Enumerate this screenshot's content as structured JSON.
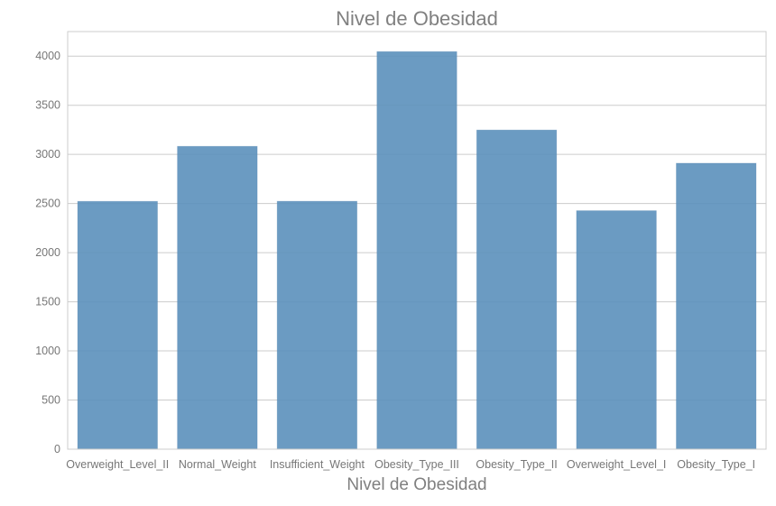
{
  "chart_data": {
    "type": "bar",
    "title": "Nivel de Obesidad",
    "xlabel": "Nivel de Obesidad",
    "ylabel": "",
    "categories": [
      "Overweight_Level_II",
      "Normal_Weight",
      "Insufficient_Weight",
      "Obesity_Type_III",
      "Obesity_Type_II",
      "Overweight_Level_I",
      "Obesity_Type_I"
    ],
    "values": [
      2522,
      3082,
      2523,
      4046,
      3248,
      2427,
      2910
    ],
    "ylim": [
      0,
      4250
    ],
    "yticks": [
      0,
      500,
      1000,
      1500,
      2000,
      2500,
      3000,
      3500,
      4000
    ],
    "grid": true,
    "legend": "none",
    "colors": {
      "bar": "#5b90bb",
      "grid": "#cccccc",
      "text": "#777777",
      "title": "#808080"
    }
  }
}
